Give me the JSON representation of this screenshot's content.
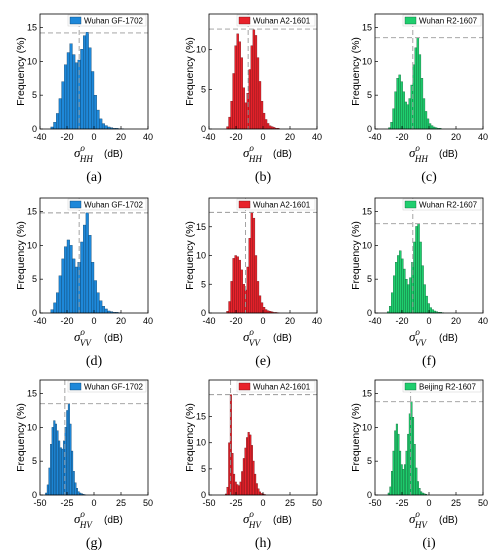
{
  "chart_data": [
    {
      "panel": "(a)",
      "type": "bar",
      "legend": "Wuhan GF-1702",
      "color": "#1e88d9",
      "xlim": [
        -40,
        40
      ],
      "xticks": [
        -40,
        -20,
        0,
        20,
        40
      ],
      "yticks": [
        0,
        5,
        10,
        15
      ],
      "ylim": [
        0,
        17
      ],
      "ylabel": "Frequency (%)",
      "xlabel": {
        "sub": "HH",
        "unit": "(dB)"
      },
      "ref_x": -11,
      "ref_y": 14.2,
      "bin_start": -32,
      "bin_width": 2,
      "values": [
        0.3,
        1.0,
        2.3,
        4.5,
        7.0,
        9.5,
        11.3,
        12.6,
        11.0,
        9.8,
        10.2,
        11.8,
        13.8,
        14.3,
        12.0,
        8.5,
        5.0,
        2.8,
        1.5,
        0.8,
        0.5,
        0.3,
        0.2,
        0.1,
        0.1,
        0.05,
        0.05
      ]
    },
    {
      "panel": "(b)",
      "type": "bar",
      "legend": "Wuhan A2-1601",
      "color": "#e8222b",
      "xlim": [
        -40,
        40
      ],
      "xticks": [
        -40,
        -20,
        0,
        20,
        40
      ],
      "yticks": [
        0,
        5,
        10
      ],
      "ylim": [
        0,
        14.5
      ],
      "ylabel": "Frequency (%)",
      "xlabel": {
        "sub": "HH",
        "unit": "(dB)"
      },
      "ref_x": -11,
      "ref_y": 12.6,
      "bin_start": -27,
      "bin_width": 1.5,
      "values": [
        0.3,
        1.5,
        3.5,
        7.0,
        10.5,
        12.0,
        11.0,
        9.0,
        5.2,
        3.3,
        4.5,
        7.5,
        10.5,
        12.5,
        11.8,
        9.0,
        6.0,
        3.5,
        2.0,
        1.2,
        0.7,
        0.4,
        0.3,
        0.2,
        0.1,
        0.1
      ]
    },
    {
      "panel": "(c)",
      "type": "bar",
      "legend": "Wuhan R2-1607",
      "color": "#1fce6e",
      "xlim": [
        -40,
        40
      ],
      "xticks": [
        -40,
        -20,
        0,
        20,
        40
      ],
      "yticks": [
        0,
        5,
        10,
        15
      ],
      "ylim": [
        0,
        17
      ],
      "ylabel": "Frequency (%)",
      "xlabel": {
        "sub": "HH",
        "unit": "(dB)"
      },
      "ref_x": -12,
      "ref_y": 13.5,
      "bin_start": -30,
      "bin_width": 1.5,
      "values": [
        0.2,
        1.0,
        3.0,
        5.5,
        7.5,
        8.0,
        7.0,
        5.5,
        4.0,
        3.6,
        4.5,
        6.5,
        9.5,
        12.0,
        13.5,
        11.0,
        7.5,
        4.5,
        2.6,
        1.5,
        0.8,
        0.5,
        0.3,
        0.2,
        0.1,
        0.1
      ]
    },
    {
      "panel": "(d)",
      "type": "bar",
      "legend": "Wuhan GF-1702",
      "color": "#1e88d9",
      "xlim": [
        -40,
        40
      ],
      "xticks": [
        -40,
        -20,
        0,
        20,
        40
      ],
      "yticks": [
        0,
        5,
        10,
        15
      ],
      "ylim": [
        0,
        17
      ],
      "ylabel": "Frequency (%)",
      "xlabel": {
        "sub": "VV",
        "unit": "(dB)"
      },
      "ref_x": -11,
      "ref_y": 14.8,
      "bin_start": -32,
      "bin_width": 2,
      "values": [
        0.5,
        1.5,
        3.0,
        5.5,
        8.0,
        9.8,
        10.8,
        10.0,
        8.0,
        6.8,
        7.5,
        10.5,
        13.0,
        14.8,
        11.5,
        7.5,
        4.8,
        3.0,
        1.8,
        1.0,
        0.6,
        0.3,
        0.2,
        0.1,
        0.1,
        0.05
      ]
    },
    {
      "panel": "(e)",
      "type": "bar",
      "legend": "Wuhan A2-1601",
      "color": "#e8222b",
      "xlim": [
        -40,
        40
      ],
      "xticks": [
        -40,
        -20,
        0,
        20,
        40
      ],
      "yticks": [
        0,
        5,
        10,
        15
      ],
      "ylim": [
        0,
        20
      ],
      "ylabel": "Frequency (%)",
      "xlabel": {
        "sub": "VV",
        "unit": "(dB)"
      },
      "ref_x": -13,
      "ref_y": 17.5,
      "bin_start": -27,
      "bin_width": 1.5,
      "values": [
        0.3,
        2.0,
        5.5,
        9.5,
        10.0,
        9.8,
        9.2,
        7.5,
        5.0,
        4.0,
        8.0,
        13.0,
        17.5,
        16.5,
        10.0,
        5.5,
        3.0,
        1.8,
        1.0,
        0.6,
        0.4,
        0.3,
        0.2,
        0.1,
        0.1,
        0.05
      ]
    },
    {
      "panel": "(f)",
      "type": "bar",
      "legend": "Wuhan R2-1607",
      "color": "#1fce6e",
      "xlim": [
        -40,
        40
      ],
      "xticks": [
        -40,
        -20,
        0,
        20,
        40
      ],
      "yticks": [
        0,
        5,
        10,
        15
      ],
      "ylim": [
        0,
        17
      ],
      "ylabel": "Frequency (%)",
      "xlabel": {
        "sub": "VV",
        "unit": "(dB)"
      },
      "ref_x": -12,
      "ref_y": 13.2,
      "bin_start": -31,
      "bin_width": 1.5,
      "values": [
        0.2,
        1.0,
        3.0,
        5.5,
        7.5,
        8.5,
        9.2,
        8.0,
        6.5,
        5.0,
        4.2,
        5.2,
        7.5,
        10.5,
        12.8,
        13.2,
        10.5,
        7.0,
        4.2,
        2.5,
        1.4,
        0.8,
        0.5,
        0.3,
        0.2,
        0.1,
        0.1,
        0.05
      ]
    },
    {
      "panel": "(g)",
      "type": "bar",
      "legend": "Wuhan GF-1702",
      "color": "#1e88d9",
      "xlim": [
        -50,
        50
      ],
      "xticks": [
        -50,
        -25,
        0,
        25,
        50
      ],
      "yticks": [
        0,
        5,
        10,
        15
      ],
      "ylim": [
        0,
        17
      ],
      "ylabel": "Frequency (%)",
      "xlabel": {
        "sub": "HV",
        "unit": "(dB)"
      },
      "ref_x": -27,
      "ref_y": 13.5,
      "bin_start": -45,
      "bin_width": 1.5,
      "values": [
        0.3,
        1.5,
        4.0,
        7.5,
        10.0,
        11.0,
        10.5,
        9.5,
        8.0,
        7.0,
        6.8,
        8.0,
        10.0,
        12.5,
        13.5,
        10.5,
        6.5,
        3.5,
        1.8,
        1.0,
        0.5,
        0.3,
        0.2,
        0.1,
        0.05
      ]
    },
    {
      "panel": "(h)",
      "type": "bar",
      "legend": "Wuhan A2-1601",
      "color": "#e8222b",
      "xlim": [
        -50,
        50
      ],
      "xticks": [
        -50,
        -25,
        0,
        25,
        50
      ],
      "yticks": [
        0,
        5,
        10,
        15
      ],
      "ylim": [
        0,
        22
      ],
      "ylabel": "Frequency (%)",
      "xlabel": {
        "sub": "HV",
        "unit": "(dB)"
      },
      "ref_x": -30,
      "ref_y": 19.2,
      "bin_start": -35,
      "bin_width": 1.5,
      "values": [
        0.2,
        1.5,
        10.0,
        19.2,
        8.0,
        4.0,
        2.5,
        2.0,
        1.8,
        2.5,
        4.5,
        7.0,
        9.0,
        11.0,
        12.0,
        11.5,
        9.5,
        6.5,
        4.0,
        2.2,
        1.2,
        0.6,
        0.3,
        0.2,
        0.1
      ]
    },
    {
      "panel": "(i)",
      "type": "bar",
      "legend": "Beijing R2-1607",
      "color": "#1fce6e",
      "xlim": [
        -50,
        50
      ],
      "xticks": [
        -50,
        -25,
        0,
        25,
        50
      ],
      "yticks": [
        0,
        5,
        10,
        15
      ],
      "ylim": [
        0,
        17
      ],
      "ylabel": "Frequency (%)",
      "xlabel": {
        "sub": "HV",
        "unit": "(dB)"
      },
      "ref_x": -17,
      "ref_y": 13.8,
      "bin_start": -38,
      "bin_width": 1.5,
      "values": [
        0.3,
        1.2,
        3.5,
        6.5,
        9.5,
        10.5,
        9.0,
        6.5,
        4.5,
        3.8,
        4.5,
        6.5,
        9.0,
        12.0,
        13.8,
        11.5,
        7.5,
        4.0,
        2.0,
        1.0,
        0.5,
        0.3,
        0.2,
        0.1
      ]
    }
  ]
}
